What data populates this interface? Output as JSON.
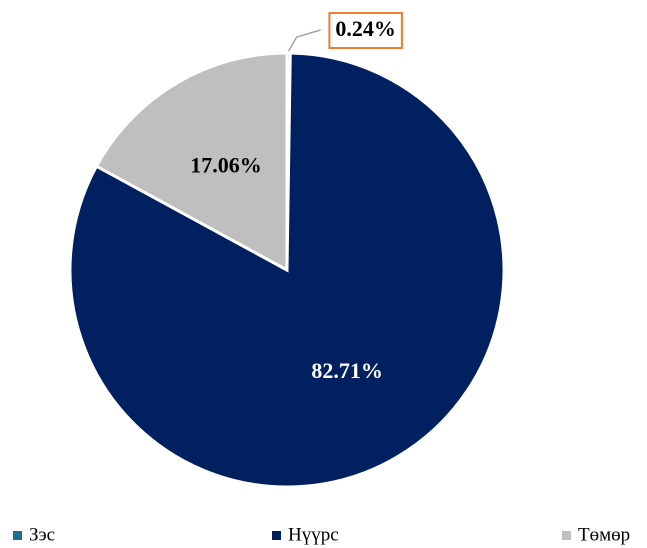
{
  "chart_data": {
    "type": "pie",
    "categories": [
      "Зэс",
      "Нүүрс",
      "Төмөр"
    ],
    "values": [
      0.24,
      82.71,
      17.06
    ],
    "value_labels": [
      "0.24%",
      "82.71%",
      "17.06%"
    ],
    "colors": [
      "#1f6f8b",
      "#002060",
      "#bfbfbf"
    ],
    "label_colors": [
      "#000000",
      "#ffffff",
      "#000000"
    ],
    "legend": "bottom"
  }
}
